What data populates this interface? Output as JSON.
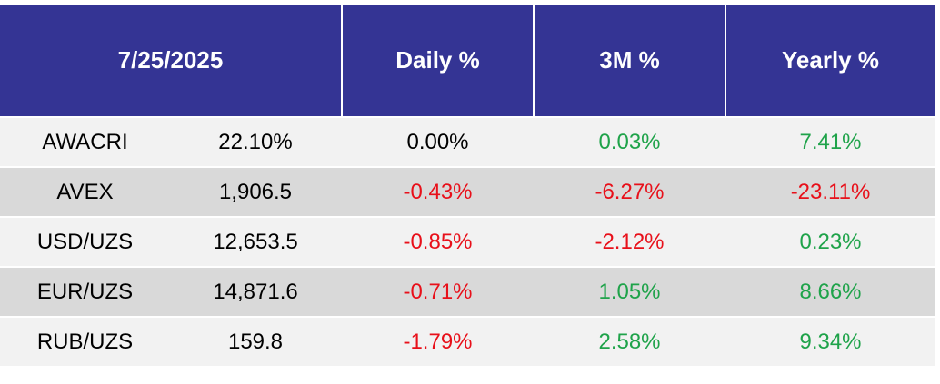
{
  "header": {
    "date": "7/25/2025",
    "columns": [
      "Daily %",
      "3M %",
      "Yearly %"
    ]
  },
  "rows": [
    [
      "AWACRI",
      "22.10%",
      "0.00%",
      "0.03%",
      "7.41%"
    ],
    [
      "AVEX",
      "1,906.5",
      "-0.43%",
      "-6.27%",
      "-23.11%"
    ],
    [
      "USD/UZS",
      "12,653.5",
      "-0.85%",
      "-2.12%",
      "0.23%"
    ],
    [
      "EUR/UZS",
      "14,871.6",
      "-0.71%",
      "1.05%",
      "8.66%"
    ],
    [
      "RUB/UZS",
      "159.8",
      "-1.79%",
      "2.58%",
      "9.34%"
    ]
  ],
  "colors": {
    "header": "#343494",
    "row_light": "#f2f2f2",
    "row_dark": "#d9d9d9",
    "up": "#1fa34a",
    "down": "#e8101a",
    "flat": "#000000"
  }
}
